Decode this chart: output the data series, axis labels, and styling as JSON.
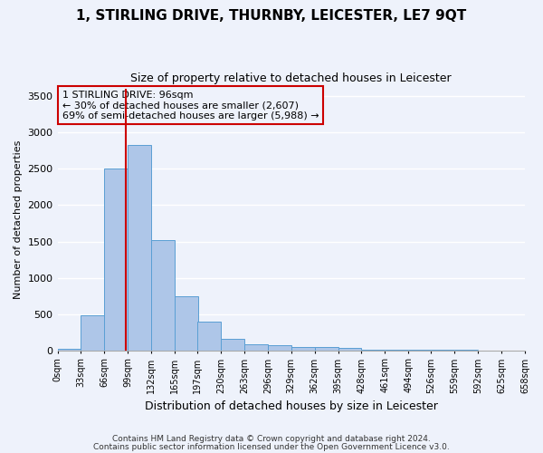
{
  "title": "1, STIRLING DRIVE, THURNBY, LEICESTER, LE7 9QT",
  "subtitle": "Size of property relative to detached houses in Leicester",
  "xlabel": "Distribution of detached houses by size in Leicester",
  "ylabel": "Number of detached properties",
  "property_size": 96,
  "property_label": "1 STIRLING DRIVE: 96sqm",
  "annotation_line1": "← 30% of detached houses are smaller (2,607)",
  "annotation_line2": "69% of semi-detached houses are larger (5,988) →",
  "bin_width": 33,
  "bins": [
    0,
    33,
    66,
    99,
    132,
    165,
    197,
    230,
    263,
    296,
    329,
    362,
    395,
    428,
    461,
    494,
    526,
    559,
    592,
    625,
    658
  ],
  "counts": [
    15,
    480,
    2500,
    2830,
    1520,
    740,
    390,
    160,
    80,
    65,
    50,
    45,
    35,
    8,
    5,
    4,
    3,
    2,
    1,
    1
  ],
  "bar_color": "#aec6e8",
  "bar_edge_color": "#5a9fd4",
  "line_color": "#cc0000",
  "annotation_box_color": "#cc0000",
  "background_color": "#eef2fb",
  "grid_color": "#ffffff",
  "ylim": [
    0,
    3600
  ],
  "yticks": [
    0,
    500,
    1000,
    1500,
    2000,
    2500,
    3000,
    3500
  ],
  "footer_line1": "Contains HM Land Registry data © Crown copyright and database right 2024.",
  "footer_line2": "Contains public sector information licensed under the Open Government Licence v3.0."
}
